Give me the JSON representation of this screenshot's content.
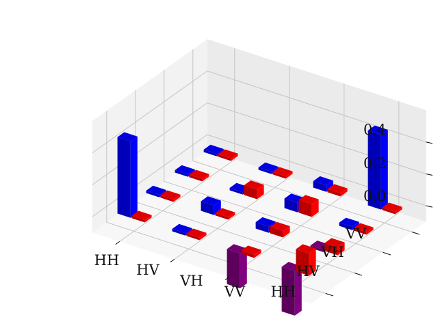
{
  "chart_data": {
    "type": "bar3d",
    "title": "",
    "x_categories": [
      "HH",
      "HV",
      "VH",
      "VV"
    ],
    "y_categories": [
      "HH",
      "HV",
      "VH",
      "VV"
    ],
    "z_ticks": [
      "0.0",
      "0.2",
      "0.4"
    ],
    "zlim": [
      -0.1,
      0.6
    ],
    "grid": true,
    "legend": "none",
    "colors": {
      "blue": "#0000ff",
      "red": "#ff0000",
      "purple": "#800080",
      "orange": "#ffa500",
      "pane_left": "#f2f2f2",
      "pane_back": "#ebebeb",
      "pane_floor": "#f7f7f7",
      "grid": "#c4c4c4"
    },
    "bars": [
      {
        "x": 0,
        "y": 0,
        "a": 0.48,
        "b": 0.0
      },
      {
        "x": 0,
        "y": 1,
        "a": 0.01,
        "b": 0.0
      },
      {
        "x": 0,
        "y": 2,
        "a": 0.01,
        "b": 0.0
      },
      {
        "x": 0,
        "y": 3,
        "a": 0.0,
        "b": 0.0
      },
      {
        "x": 1,
        "y": 0,
        "a": 0.01,
        "b": 0.0
      },
      {
        "x": 1,
        "y": 1,
        "a": 0.06,
        "b": 0.0
      },
      {
        "x": 1,
        "y": 2,
        "a": 0.0,
        "b": 0.06
      },
      {
        "x": 1,
        "y": 3,
        "a": 0.01,
        "b": 0.01
      },
      {
        "x": 2,
        "y": 0,
        "a": -0.22,
        "b": 0.02
      },
      {
        "x": 2,
        "y": 1,
        "a": 0.04,
        "b": 0.04
      },
      {
        "x": 2,
        "y": 2,
        "a": 0.06,
        "b": 0.08
      },
      {
        "x": 2,
        "y": 3,
        "a": 0.04,
        "b": 0.02
      },
      {
        "x": 3,
        "y": 0,
        "a": -0.28,
        "b": 0.14
      },
      {
        "x": 3,
        "y": 1,
        "a": -0.01,
        "b": 0.05
      },
      {
        "x": 3,
        "y": 2,
        "a": 0.02,
        "b": 0.0
      },
      {
        "x": 3,
        "y": 3,
        "a": 0.47,
        "b": 0.01
      }
    ]
  }
}
